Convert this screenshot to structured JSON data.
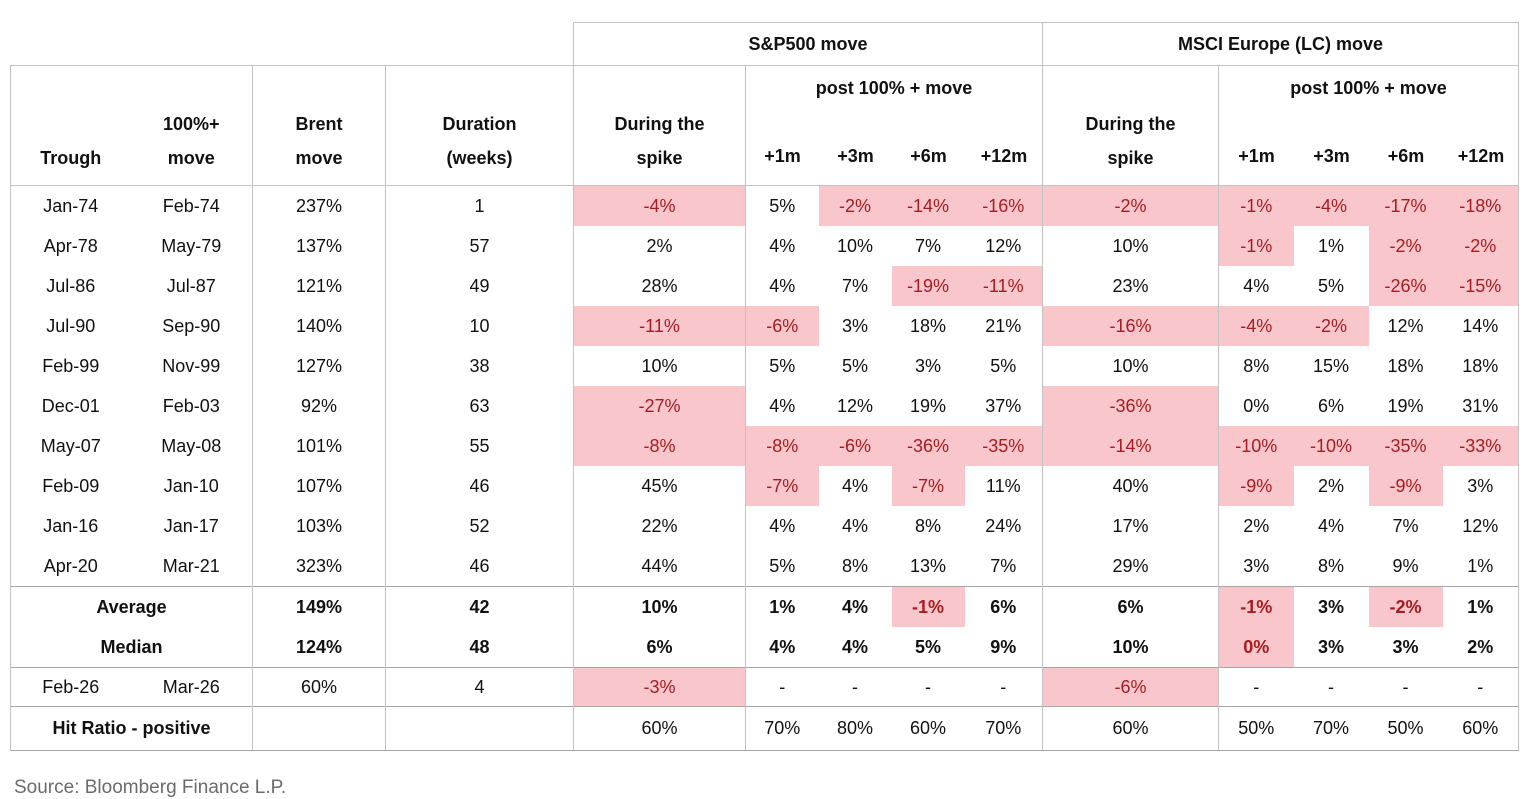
{
  "colors": {
    "highlight_bg": "#f8c6cb",
    "negative_text": "#a51d21",
    "grid_line": "#c2c2c2",
    "section_line": "#a6a6a6",
    "source_text": "#6b6b6b"
  },
  "table": {
    "band": {
      "sp500": "S&P500 move",
      "msci": "MSCI Europe (LC) move"
    },
    "columns": {
      "trough": "Trough",
      "move": [
        "100%+",
        "move"
      ],
      "brent": [
        "Brent",
        "move"
      ],
      "duration": [
        "Duration",
        "(weeks)"
      ],
      "during": [
        "During the",
        "spike"
      ],
      "post": "post 100% + move",
      "horizons": [
        "+1m",
        "+3m",
        "+6m",
        "+12m"
      ]
    },
    "rows": [
      {
        "cells": [
          "Jan-74",
          "Feb-74",
          "237%",
          "1",
          "-4%",
          "5%",
          "-2%",
          "-14%",
          "-16%",
          "-2%",
          "-1%",
          "-4%",
          "-17%",
          "-18%"
        ],
        "hl": [
          4,
          6,
          7,
          8,
          9,
          10,
          11,
          12,
          13
        ]
      },
      {
        "cells": [
          "Apr-78",
          "May-79",
          "137%",
          "57",
          "2%",
          "4%",
          "10%",
          "7%",
          "12%",
          "10%",
          "-1%",
          "1%",
          "-2%",
          "-2%"
        ],
        "hl": [
          10,
          12,
          13
        ]
      },
      {
        "cells": [
          "Jul-86",
          "Jul-87",
          "121%",
          "49",
          "28%",
          "4%",
          "7%",
          "-19%",
          "-11%",
          "23%",
          "4%",
          "5%",
          "-26%",
          "-15%"
        ],
        "hl": [
          7,
          8,
          12,
          13
        ]
      },
      {
        "cells": [
          "Jul-90",
          "Sep-90",
          "140%",
          "10",
          "-11%",
          "-6%",
          "3%",
          "18%",
          "21%",
          "-16%",
          "-4%",
          "-2%",
          "12%",
          "14%"
        ],
        "hl": [
          4,
          5,
          9,
          10,
          11
        ]
      },
      {
        "cells": [
          "Feb-99",
          "Nov-99",
          "127%",
          "38",
          "10%",
          "5%",
          "5%",
          "3%",
          "5%",
          "10%",
          "8%",
          "15%",
          "18%",
          "18%"
        ],
        "hl": []
      },
      {
        "cells": [
          "Dec-01",
          "Feb-03",
          "92%",
          "63",
          "-27%",
          "4%",
          "12%",
          "19%",
          "37%",
          "-36%",
          "0%",
          "6%",
          "19%",
          "31%"
        ],
        "hl": [
          4,
          9
        ]
      },
      {
        "cells": [
          "May-07",
          "May-08",
          "101%",
          "55",
          "-8%",
          "-8%",
          "-6%",
          "-36%",
          "-35%",
          "-14%",
          "-10%",
          "-10%",
          "-35%",
          "-33%"
        ],
        "hl": [
          4,
          5,
          6,
          7,
          8,
          9,
          10,
          11,
          12,
          13
        ]
      },
      {
        "cells": [
          "Feb-09",
          "Jan-10",
          "107%",
          "46",
          "45%",
          "-7%",
          "4%",
          "-7%",
          "11%",
          "40%",
          "-9%",
          "2%",
          "-9%",
          "3%"
        ],
        "hl": [
          5,
          7,
          10,
          12
        ]
      },
      {
        "cells": [
          "Jan-16",
          "Jan-17",
          "103%",
          "52",
          "22%",
          "4%",
          "4%",
          "8%",
          "24%",
          "17%",
          "2%",
          "4%",
          "7%",
          "12%"
        ],
        "hl": []
      },
      {
        "cells": [
          "Apr-20",
          "Mar-21",
          "323%",
          "46",
          "44%",
          "5%",
          "8%",
          "13%",
          "7%",
          "29%",
          "3%",
          "8%",
          "9%",
          "1%"
        ],
        "hl": []
      }
    ],
    "summary_rows": [
      {
        "label": "Average",
        "values": [
          "149%",
          "42",
          "10%",
          "1%",
          "4%",
          "-1%",
          "6%",
          "6%",
          "-1%",
          "3%",
          "-2%",
          "1%"
        ],
        "hl": [
          7,
          10,
          12
        ]
      },
      {
        "label": "Median",
        "values": [
          "124%",
          "48",
          "6%",
          "4%",
          "4%",
          "5%",
          "9%",
          "10%",
          "0%",
          "3%",
          "3%",
          "2%"
        ],
        "hl": [
          10
        ]
      }
    ],
    "recent_row": {
      "cells": [
        "Feb-26",
        "Mar-26",
        "60%",
        "4",
        "-3%",
        "-",
        "-",
        "-",
        "-",
        "-6%",
        "-",
        "-",
        "-",
        "-"
      ],
      "hl": [
        4,
        9
      ]
    },
    "hit_row": {
      "label": "Hit Ratio - positive",
      "values": [
        "60%",
        "70%",
        "80%",
        "60%",
        "70%",
        "60%",
        "50%",
        "70%",
        "50%",
        "60%"
      ]
    }
  },
  "source": "Source: Bloomberg Finance L.P."
}
